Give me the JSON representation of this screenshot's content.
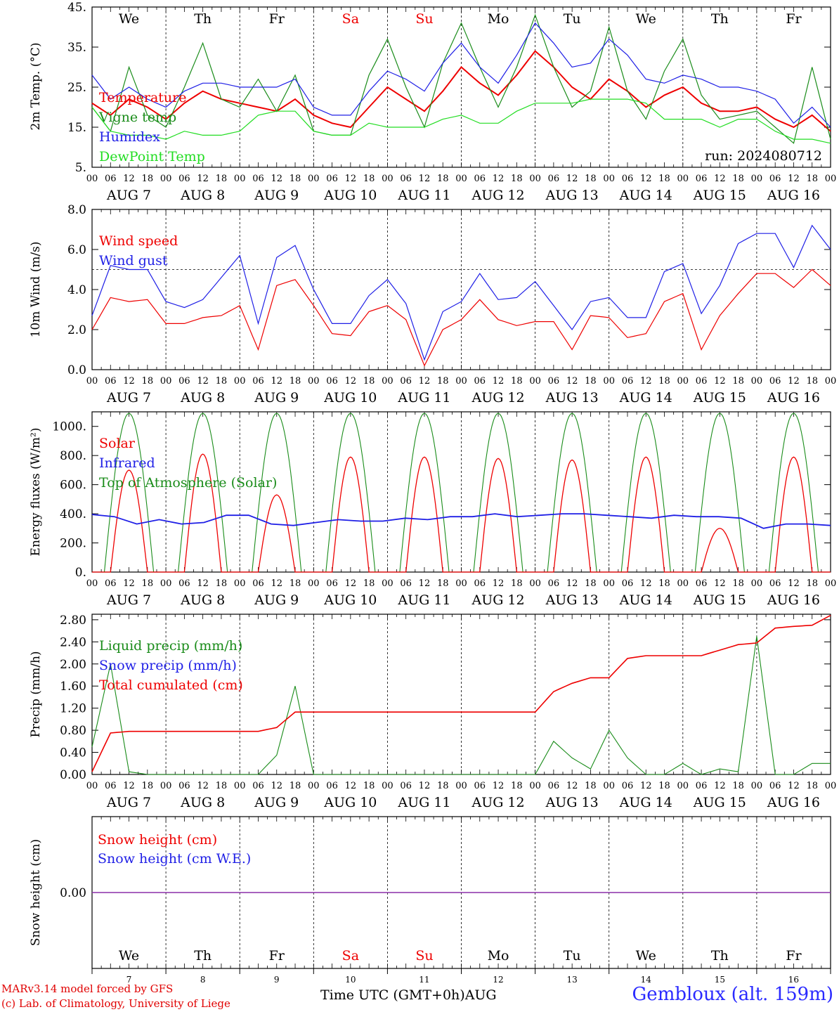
{
  "run_label": "run: 2024080712",
  "model_credit": "MARv3.14 model forced by GFS",
  "lab_credit": "(c) Lab. of Climatology, University of Liege",
  "location": "Gembloux (alt. 159m)",
  "xaxis_title": "Time UTC (GMT+0h)",
  "month_label": "AUG",
  "colors": {
    "red": "#ee0000",
    "green": "#1a8c1a",
    "blue": "#1f1fe6",
    "lime": "#22dd22",
    "purple": "#8b2fa8"
  },
  "days": [
    {
      "abbr": "We",
      "date": "AUG  7",
      "num": "7",
      "weekend": false
    },
    {
      "abbr": "Th",
      "date": "AUG  8",
      "num": "8",
      "weekend": false
    },
    {
      "abbr": "Fr",
      "date": "AUG  9",
      "num": "9",
      "weekend": false
    },
    {
      "abbr": "Sa",
      "date": "AUG 10",
      "num": "10",
      "weekend": true
    },
    {
      "abbr": "Su",
      "date": "AUG 11",
      "num": "11",
      "weekend": true
    },
    {
      "abbr": "Mo",
      "date": "AUG 12",
      "num": "12",
      "weekend": false
    },
    {
      "abbr": "Tu",
      "date": "AUG 13",
      "num": "13",
      "weekend": false
    },
    {
      "abbr": "We",
      "date": "AUG 14",
      "num": "14",
      "weekend": false
    },
    {
      "abbr": "Th",
      "date": "AUG 15",
      "num": "15",
      "weekend": false
    },
    {
      "abbr": "Fr",
      "date": "AUG 16",
      "num": "16",
      "weekend": false
    }
  ],
  "hour_ticks": [
    "00",
    "06",
    "12",
    "18"
  ],
  "chart_data": [
    {
      "type": "line",
      "ylabel": "2m Temp. (°C)",
      "ylim": [
        5,
        45
      ],
      "yticks": [
        "5.",
        "15.",
        "25.",
        "35.",
        "45."
      ],
      "x_hours": [
        0,
        6,
        12,
        18,
        24,
        30,
        36,
        42,
        48,
        54,
        60,
        66,
        72,
        78,
        84,
        90,
        96,
        102,
        108,
        114,
        120,
        126,
        132,
        138,
        144,
        150,
        156,
        162,
        168,
        174,
        180,
        186,
        192,
        198,
        204,
        210,
        216,
        222,
        228,
        234,
        240
      ],
      "series": [
        {
          "name": "Temperature",
          "color": "red",
          "values": [
            21,
            18,
            22,
            20,
            17,
            21,
            24,
            22,
            21,
            20,
            19,
            22,
            18,
            16,
            15,
            20,
            25,
            22,
            19,
            24,
            30,
            26,
            23,
            28,
            34,
            30,
            25,
            22,
            27,
            24,
            20,
            23,
            25,
            21,
            19,
            19,
            20,
            17,
            15,
            18,
            14
          ]
        },
        {
          "name": "Vigne temp",
          "color": "green",
          "values": [
            20,
            14,
            30,
            18,
            15,
            25,
            36,
            22,
            20,
            27,
            19,
            28,
            14,
            13,
            13,
            28,
            37,
            25,
            15,
            31,
            41,
            30,
            20,
            30,
            43,
            30,
            20,
            24,
            40,
            24,
            17,
            29,
            37,
            23,
            17,
            18,
            19,
            15,
            11,
            30,
            12
          ]
        },
        {
          "name": "Humidex",
          "color": "blue",
          "values": [
            28,
            22,
            25,
            22,
            20,
            24,
            26,
            26,
            25,
            25,
            25,
            27,
            20,
            18,
            18,
            24,
            29,
            27,
            24,
            31,
            36,
            30,
            26,
            33,
            41,
            36,
            30,
            31,
            37,
            33,
            27,
            26,
            28,
            27,
            25,
            25,
            24,
            22,
            16,
            20,
            15
          ]
        },
        {
          "name": "DewPoint Temp",
          "color": "lime",
          "values": [
            20,
            14,
            13,
            13,
            12,
            14,
            13,
            13,
            14,
            18,
            19,
            19,
            14,
            13,
            13,
            16,
            15,
            15,
            15,
            17,
            18,
            16,
            16,
            19,
            21,
            21,
            21,
            22,
            22,
            22,
            21,
            17,
            17,
            17,
            15,
            17,
            17,
            14,
            12,
            12,
            11
          ]
        }
      ]
    },
    {
      "type": "line",
      "ylabel": "10m Wind (m/s)",
      "ylim": [
        0,
        8
      ],
      "yticks": [
        "0.0",
        "2.0",
        "4.0",
        "6.0",
        "8.0"
      ],
      "reference_line": 5,
      "x_hours": [
        0,
        6,
        12,
        18,
        24,
        30,
        36,
        42,
        48,
        54,
        60,
        66,
        72,
        78,
        84,
        90,
        96,
        102,
        108,
        114,
        120,
        126,
        132,
        138,
        144,
        150,
        156,
        162,
        168,
        174,
        180,
        186,
        192,
        198,
        204,
        210,
        216,
        222,
        228,
        234,
        240
      ],
      "series": [
        {
          "name": "Wind speed",
          "color": "red",
          "values": [
            2,
            3.6,
            3.4,
            3.5,
            2.3,
            2.3,
            2.6,
            2.7,
            3.2,
            1,
            4.2,
            4.5,
            3.2,
            1.8,
            1.7,
            2.9,
            3.2,
            2.5,
            0.2,
            2.0,
            2.5,
            3.5,
            2.5,
            2.2,
            2.4,
            2.4,
            1.0,
            2.7,
            2.6,
            1.6,
            1.8,
            3.4,
            3.8,
            1.0,
            2.7,
            3.8,
            4.8,
            4.8,
            4.1,
            5.0,
            4.2
          ]
        },
        {
          "name": "Wind gust",
          "color": "blue",
          "values": [
            2.7,
            5.2,
            5.0,
            5.0,
            3.4,
            3.1,
            3.5,
            4.6,
            5.7,
            2.3,
            5.6,
            6.2,
            4.0,
            2.3,
            2.3,
            3.7,
            4.5,
            3.3,
            0.5,
            2.9,
            3.4,
            4.8,
            3.5,
            3.6,
            4.4,
            3.2,
            2.0,
            3.4,
            3.6,
            2.6,
            2.6,
            4.9,
            5.3,
            2.8,
            4.2,
            6.3,
            6.8,
            6.8,
            5.1,
            7.2,
            6.0
          ]
        }
      ]
    },
    {
      "type": "line",
      "ylabel": "Energy fluxes (W/m²)",
      "ylim": [
        0,
        1100
      ],
      "yticks": [
        "0.",
        "200.",
        "400.",
        "600.",
        "800.",
        "1000."
      ],
      "series": [
        {
          "name": "Solar",
          "color": "red",
          "peaks": [
            700,
            810,
            530,
            790,
            790,
            780,
            770,
            790,
            300,
            790
          ]
        },
        {
          "name": "Infrared",
          "color": "blue",
          "values": [
            395,
            380,
            330,
            360,
            330,
            340,
            390,
            390,
            330,
            320,
            340,
            360,
            350,
            350,
            370,
            360,
            380,
            380,
            400,
            380,
            390,
            400,
            400,
            390,
            380,
            370,
            390,
            380,
            380,
            370,
            300,
            330,
            330,
            320
          ]
        },
        {
          "name": "Top of Atmosphere (Solar)",
          "color": "green",
          "peak": 1090
        }
      ]
    },
    {
      "type": "line",
      "ylabel": "Precip (mm/h)",
      "ylim": [
        0,
        2.9
      ],
      "yticks": [
        "0.00",
        "0.40",
        "0.80",
        "1.20",
        "1.60",
        "2.00",
        "2.40",
        "2.80"
      ],
      "series": [
        {
          "name": "Liquid precip (mm/h)",
          "color": "green",
          "values": [
            0.5,
            2.0,
            0.05,
            0,
            0,
            0,
            0,
            0,
            0,
            0,
            0.35,
            1.6,
            0,
            0,
            0,
            0,
            0,
            0,
            0,
            0,
            0,
            0,
            0,
            0,
            0,
            0.6,
            0.3,
            0.1,
            0.8,
            0.3,
            0,
            0,
            0.2,
            0,
            0.1,
            0.05,
            2.5,
            0,
            0,
            0.2,
            0.2
          ]
        },
        {
          "name": "Snow precip (mm/h)",
          "color": "blue",
          "values": []
        },
        {
          "name": "Total cumulated (cm)",
          "color": "red",
          "values": [
            0.05,
            0.75,
            0.78,
            0.78,
            0.78,
            0.78,
            0.78,
            0.78,
            0.78,
            0.78,
            0.85,
            1.13,
            1.13,
            1.13,
            1.13,
            1.13,
            1.13,
            1.13,
            1.13,
            1.13,
            1.13,
            1.13,
            1.13,
            1.13,
            1.13,
            1.5,
            1.65,
            1.75,
            1.75,
            2.1,
            2.15,
            2.15,
            2.15,
            2.15,
            2.25,
            2.35,
            2.38,
            2.65,
            2.68,
            2.7,
            2.88
          ]
        }
      ]
    },
    {
      "type": "line",
      "ylabel": "Snow height (cm)",
      "yticks": [
        "0.00"
      ],
      "series": [
        {
          "name": "Snow height (cm)",
          "color": "red",
          "values": [
            0,
            0
          ]
        },
        {
          "name": "Snow height (cm W.E.)",
          "color": "blue",
          "values": [
            0,
            0
          ]
        }
      ]
    }
  ]
}
